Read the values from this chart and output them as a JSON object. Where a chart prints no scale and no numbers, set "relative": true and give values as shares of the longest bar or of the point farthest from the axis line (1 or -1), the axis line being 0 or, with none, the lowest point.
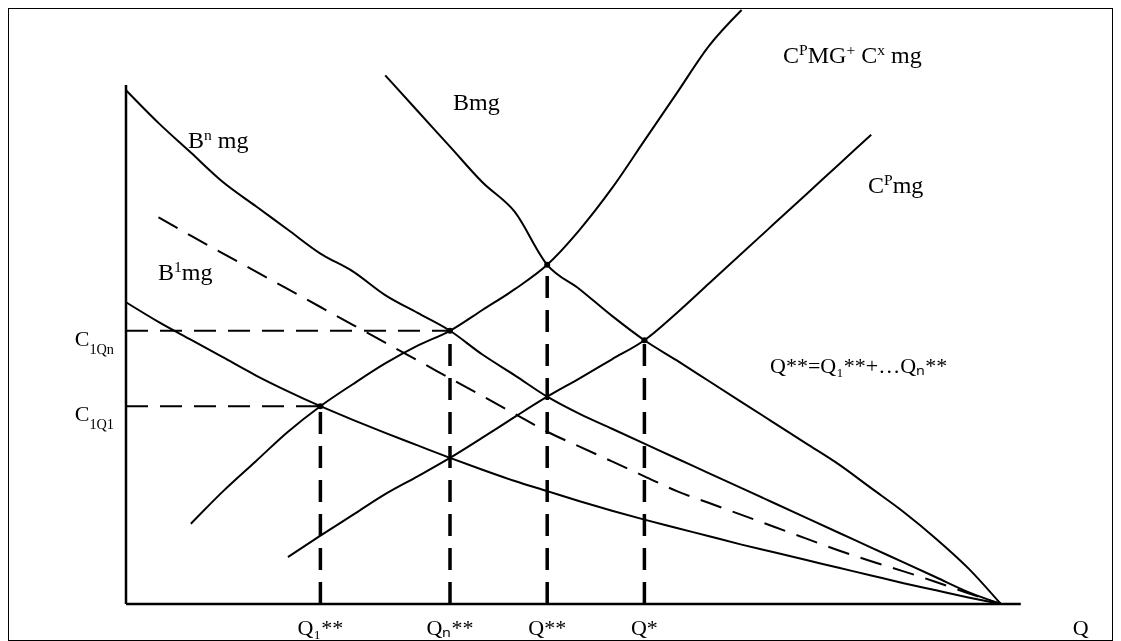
{
  "chart_data": {
    "type": "line",
    "relative": true,
    "xlabel": "Q",
    "categories": [
      null,
      null,
      null,
      null,
      null,
      null,
      "Q₁**",
      null,
      null,
      null,
      "Qₙ**",
      null,
      null,
      "Q**",
      null,
      null,
      "Q*",
      null,
      null,
      null,
      null,
      null,
      null,
      null,
      null,
      null,
      null,
      null
    ],
    "grid": false,
    "legend": false,
    "series": [
      {
        "name": "Bmg",
        "color": "#000000",
        "values": [
          null,
          null,
          null,
          null,
          null,
          null,
          null,
          null,
          0.89,
          0.83,
          0.77,
          0.71,
          0.66,
          0.571,
          0.53,
          0.485,
          0.444,
          0.41,
          0.375,
          0.34,
          0.305,
          0.27,
          0.235,
          0.195,
          0.155,
          0.11,
          0.06,
          0
        ]
      },
      {
        "name": "B$^{n}$ mg",
        "color": "#000000",
        "values": [
          0.865,
          0.81,
          0.76,
          0.71,
          0.67,
          0.63,
          0.59,
          0.56,
          0.52,
          0.49,
          0.46,
          0.42,
          0.385,
          0.349,
          0.32,
          0.295,
          0.27,
          0.245,
          0.22,
          0.195,
          0.17,
          0.145,
          0.12,
          0.095,
          0.07,
          0.045,
          0.02,
          0
        ]
      },
      {
        "name": "B$^{1}$mg",
        "color": "#000000",
        "values": [
          0.508,
          0.475,
          0.445,
          0.415,
          0.385,
          0.358,
          0.333,
          0.31,
          0.288,
          0.267,
          0.246,
          0.226,
          0.207,
          0.19,
          0.173,
          0.157,
          0.142,
          0.128,
          0.114,
          0.1,
          0.087,
          0.074,
          0.061,
          0.048,
          0.035,
          0.023,
          0.011,
          0
        ]
      },
      {
        "color": "#000000",
        "line_style": "dashed",
        "values": [
          null,
          0.651,
          0.62,
          0.59,
          0.56,
          0.53,
          0.5,
          0.47,
          0.44,
          0.41,
          0.38,
          0.35,
          0.32,
          0.29,
          0.265,
          0.24,
          0.215,
          0.19,
          0.17,
          0.15,
          0.13,
          0.11,
          0.09,
          0.072,
          0.055,
          0.037,
          0.018,
          0
        ]
      },
      {
        "name": "C$^{P}$mg",
        "color": "#000000",
        "values": [
          null,
          null,
          null,
          null,
          null,
          0.079,
          0.115,
          0.15,
          0.185,
          0.215,
          0.246,
          0.28,
          0.315,
          0.349,
          0.38,
          0.412,
          0.444,
          0.49,
          0.54,
          0.59,
          0.64,
          0.69,
          0.74,
          0.79,
          null,
          null,
          null,
          null
        ]
      },
      {
        "name": "C$^{P}$MG$^{+}$ C$^{x}$ mg",
        "color": "#000000",
        "values": [
          null,
          null,
          0.135,
          0.19,
          0.24,
          0.29,
          0.333,
          0.37,
          0.405,
          0.435,
          0.46,
          0.495,
          0.53,
          0.571,
          0.63,
          0.7,
          0.78,
          0.86,
          0.94,
          1,
          null,
          null,
          null,
          null,
          null,
          null,
          null,
          null
        ]
      },
      {
        "color": "#000000",
        "line_style": "dashed",
        "values": [
          0.46,
          0.46,
          0.46,
          0.46,
          0.46,
          0.46,
          0.46,
          0.46,
          0.46,
          0.46,
          0.46,
          null,
          null,
          null,
          null,
          null,
          null,
          null,
          null,
          null,
          null,
          null,
          null,
          null,
          null,
          null,
          null,
          null
        ]
      },
      {
        "color": "#000000",
        "line_style": "dashed",
        "values": [
          0.333,
          0.333,
          0.333,
          0.333,
          0.333,
          0.333,
          0.333,
          null,
          null,
          null,
          null,
          null,
          null,
          null,
          null,
          null,
          null,
          null,
          null,
          null,
          null,
          null,
          null,
          null,
          null,
          null,
          null,
          null
        ]
      },
      {
        "type": "lollipop",
        "marker": "circle",
        "color": "#000000",
        "line_style": "dashed",
        "values": [
          null,
          null,
          null,
          null,
          null,
          null,
          0.333,
          null,
          null,
          null,
          0.46,
          null,
          null,
          0.571,
          null,
          null,
          0.444,
          null,
          null,
          null,
          null,
          null,
          null,
          null,
          null,
          null,
          null,
          null
        ]
      }
    ],
    "annotations": [
      "C$_{1Qn}$",
      "C$_{1Q1}$",
      "Q**=Q₁**+…Qₙ**"
    ]
  }
}
